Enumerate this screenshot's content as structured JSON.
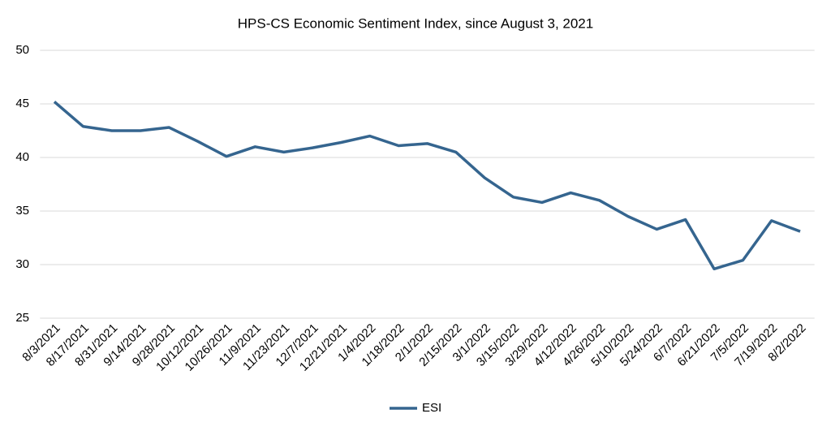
{
  "chart_data": {
    "type": "line",
    "title": "HPS-CS Economic Sentiment Index, since August 3, 2021",
    "categories": [
      "8/3/2021",
      "8/17/2021",
      "8/31/2021",
      "9/14/2021",
      "9/28/2021",
      "10/12/2021",
      "10/26/2021",
      "11/9/2021",
      "11/23/2021",
      "12/7/2021",
      "12/21/2021",
      "1/4/2022",
      "1/18/2022",
      "2/1/2022",
      "2/15/2022",
      "3/1/2022",
      "3/15/2022",
      "3/29/2022",
      "4/12/2022",
      "4/26/2022",
      "5/10/2022",
      "5/24/2022",
      "6/7/2022",
      "6/21/2022",
      "7/5/2022",
      "7/19/2022",
      "8/2/2022"
    ],
    "series": [
      {
        "name": "ESI",
        "color": "#35658f",
        "values": [
          45.2,
          42.9,
          42.5,
          42.5,
          42.8,
          41.5,
          40.1,
          41.0,
          40.5,
          40.9,
          41.4,
          42.0,
          41.1,
          41.3,
          40.5,
          38.1,
          36.3,
          35.8,
          36.7,
          36.0,
          34.5,
          33.3,
          34.2,
          29.6,
          30.4,
          34.1,
          33.1
        ]
      }
    ],
    "ylim": [
      25,
      50
    ],
    "yticks": [
      25,
      30,
      35,
      40,
      45,
      50
    ],
    "grid": true,
    "legend": "bottom"
  }
}
